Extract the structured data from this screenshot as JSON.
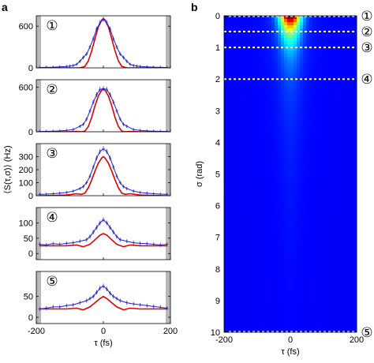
{
  "figure": {
    "panel_a_label": "a",
    "panel_b_label": "b"
  },
  "chart_data": [
    {
      "type": "line",
      "panel": "a",
      "ylabel": "⟨S(τ,σ)⟩ (Hz)",
      "xlabel": "τ (fs)",
      "xlim": [
        -200,
        200
      ],
      "x_ticks": [
        "-200",
        "0",
        "200"
      ],
      "subplots": [
        {
          "marker": "①",
          "ylim": [
            0,
            750
          ],
          "y_ticks": [
            0,
            600
          ],
          "series": [
            {
              "role": "measured",
              "color": "#2020d0",
              "x": [
                -190,
                -170,
                -150,
                -130,
                -110,
                -100,
                -90,
                -80,
                -70,
                -60,
                -50,
                -40,
                -30,
                -20,
                -10,
                0,
                10,
                20,
                30,
                40,
                50,
                60,
                70,
                80,
                90,
                100,
                110,
                130,
                150,
                170,
                190
              ],
              "y": [
                5,
                8,
                10,
                15,
                20,
                25,
                35,
                50,
                95,
                150,
                200,
                300,
                420,
                560,
                650,
                700,
                650,
                560,
                420,
                300,
                200,
                150,
                95,
                50,
                35,
                25,
                20,
                15,
                10,
                8,
                5
              ]
            },
            {
              "role": "model",
              "color": "#e00000",
              "x": [
                -190,
                -150,
                -110,
                -90,
                -70,
                -55,
                -45,
                -35,
                -25,
                -15,
                -5,
                0,
                5,
                15,
                25,
                35,
                45,
                55,
                70,
                90,
                110,
                150,
                190
              ],
              "y": [
                0,
                0,
                0,
                0,
                0,
                20,
                100,
                240,
                420,
                590,
                690,
                710,
                690,
                590,
                420,
                240,
                100,
                20,
                0,
                0,
                0,
                0,
                0
              ]
            }
          ]
        },
        {
          "marker": "②",
          "ylim": [
            0,
            700
          ],
          "y_ticks": [
            0,
            600
          ],
          "series": [
            {
              "role": "measured",
              "color": "#2020d0",
              "x": [
                -190,
                -170,
                -150,
                -130,
                -110,
                -90,
                -70,
                -60,
                -50,
                -40,
                -30,
                -20,
                -10,
                0,
                10,
                20,
                30,
                40,
                50,
                60,
                70,
                90,
                110,
                130,
                150,
                170,
                190
              ],
              "y": [
                5,
                6,
                8,
                12,
                18,
                30,
                75,
                100,
                170,
                280,
                400,
                500,
                570,
                580,
                570,
                500,
                400,
                280,
                170,
                100,
                75,
                30,
                18,
                12,
                8,
                6,
                5
              ]
            },
            {
              "role": "model",
              "color": "#e00000",
              "x": [
                -190,
                -150,
                -110,
                -80,
                -65,
                -55,
                -45,
                -35,
                -25,
                -15,
                -5,
                0,
                5,
                15,
                25,
                35,
                45,
                55,
                65,
                80,
                110,
                150,
                190
              ],
              "y": [
                0,
                0,
                0,
                5,
                0,
                10,
                70,
                190,
                350,
                480,
                560,
                570,
                560,
                480,
                350,
                190,
                70,
                10,
                0,
                5,
                0,
                0,
                0
              ]
            }
          ]
        },
        {
          "marker": "③",
          "ylim": [
            0,
            400
          ],
          "y_ticks": [
            0,
            100,
            200,
            300
          ],
          "series": [
            {
              "role": "measured",
              "color": "#2020d0",
              "x": [
                -190,
                -170,
                -150,
                -130,
                -110,
                -90,
                -70,
                -60,
                -50,
                -40,
                -30,
                -20,
                -10,
                0,
                10,
                20,
                30,
                40,
                50,
                60,
                70,
                90,
                110,
                130,
                150,
                170,
                190
              ],
              "y": [
                10,
                12,
                15,
                20,
                25,
                35,
                55,
                70,
                100,
                150,
                220,
                290,
                340,
                360,
                340,
                290,
                220,
                150,
                100,
                70,
                55,
                35,
                25,
                20,
                15,
                12,
                10
              ]
            },
            {
              "role": "model",
              "color": "#e00000",
              "x": [
                -190,
                -150,
                -110,
                -80,
                -65,
                -55,
                -45,
                -35,
                -25,
                -15,
                -5,
                0,
                5,
                15,
                25,
                35,
                45,
                55,
                65,
                80,
                110,
                150,
                190
              ],
              "y": [
                0,
                2,
                5,
                15,
                10,
                20,
                60,
                120,
                190,
                250,
                290,
                300,
                290,
                250,
                190,
                120,
                60,
                20,
                10,
                15,
                5,
                2,
                0
              ]
            }
          ]
        },
        {
          "marker": "④",
          "ylim": [
            -20,
            150
          ],
          "y_ticks": [
            0,
            50,
            100
          ],
          "series": [
            {
              "role": "measured",
              "color": "#2020d0",
              "x": [
                -190,
                -170,
                -150,
                -130,
                -110,
                -90,
                -70,
                -50,
                -40,
                -30,
                -20,
                -10,
                0,
                10,
                20,
                30,
                40,
                50,
                70,
                90,
                110,
                130,
                150,
                170,
                190
              ],
              "y": [
                30,
                28,
                32,
                30,
                33,
                35,
                40,
                45,
                55,
                70,
                85,
                100,
                110,
                100,
                85,
                70,
                55,
                45,
                40,
                35,
                33,
                32,
                30,
                28,
                30
              ]
            },
            {
              "role": "model",
              "color": "#e00000",
              "x": [
                -190,
                -150,
                -110,
                -80,
                -60,
                -40,
                -25,
                -10,
                0,
                10,
                25,
                40,
                60,
                80,
                110,
                150,
                190
              ],
              "y": [
                25,
                25,
                25,
                28,
                22,
                30,
                45,
                60,
                65,
                60,
                45,
                30,
                22,
                28,
                25,
                25,
                25
              ]
            }
          ]
        },
        {
          "marker": "⑤",
          "ylim": [
            -15,
            110
          ],
          "y_ticks": [
            0,
            50
          ],
          "series": [
            {
              "role": "measured",
              "color": "#2020d0",
              "x": [
                -190,
                -170,
                -150,
                -130,
                -110,
                -90,
                -70,
                -50,
                -40,
                -30,
                -20,
                -10,
                0,
                10,
                20,
                30,
                40,
                50,
                70,
                90,
                110,
                130,
                150,
                170,
                190
              ],
              "y": [
                20,
                22,
                25,
                25,
                28,
                30,
                35,
                40,
                45,
                50,
                60,
                70,
                75,
                68,
                58,
                50,
                45,
                40,
                35,
                32,
                30,
                28,
                26,
                24,
                22
              ]
            },
            {
              "role": "model",
              "color": "#e00000",
              "x": [
                -190,
                -150,
                -110,
                -80,
                -60,
                -40,
                -25,
                -10,
                0,
                10,
                25,
                40,
                60,
                80,
                110,
                150,
                190
              ],
              "y": [
                20,
                20,
                20,
                22,
                18,
                25,
                35,
                45,
                50,
                45,
                35,
                25,
                18,
                22,
                20,
                20,
                20
              ]
            }
          ]
        }
      ]
    },
    {
      "type": "heatmap",
      "panel": "b",
      "xlabel": "τ (fs)",
      "ylabel": "σ (rad)",
      "xlim": [
        -200,
        200
      ],
      "ylim": [
        10,
        0
      ],
      "x_ticks": [
        "-200",
        "0",
        "200"
      ],
      "y_ticks": [
        "0",
        "1",
        "2",
        "3",
        "4",
        "5",
        "6",
        "7",
        "8",
        "9",
        "10"
      ],
      "colormap": [
        "#00007f",
        "#0000ff",
        "#007fff",
        "#00ffff",
        "#7fff7f",
        "#ffff00",
        "#ff7f00",
        "#ff0000",
        "#7f0000"
      ],
      "marker_sigmas": [
        0,
        0.5,
        1,
        2,
        10
      ],
      "markers": [
        "①",
        "②",
        "③",
        "④",
        "⑤"
      ]
    }
  ]
}
